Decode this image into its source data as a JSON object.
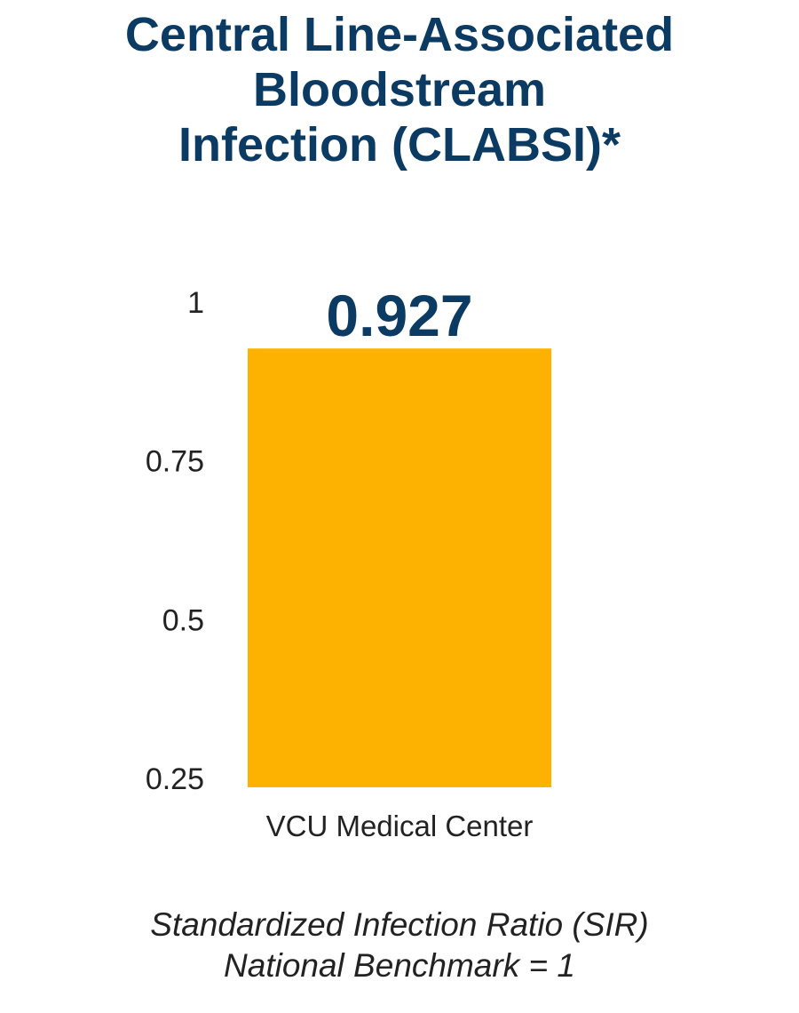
{
  "chart_data": {
    "type": "bar",
    "title_lines": [
      "Central Line-Associated",
      "Bloodstream",
      "Infection (CLABSI)*"
    ],
    "categories": [
      "VCU Medical Center"
    ],
    "values": [
      0.927
    ],
    "data_labels": [
      "0.927"
    ],
    "yticks": [
      "1",
      "0.75",
      "0.5",
      "0.25"
    ],
    "ytick_values": [
      1,
      0.75,
      0.5,
      0.25
    ],
    "ylim": [
      0.25,
      1
    ],
    "grid": false,
    "notes": [
      "Standardized Infection Ratio (SIR)",
      "National Benchmark = 1"
    ],
    "colors": {
      "bar": "#FDB202",
      "title": "#0B3A63",
      "data_label": "#0B3A63",
      "text": "#222222"
    }
  }
}
